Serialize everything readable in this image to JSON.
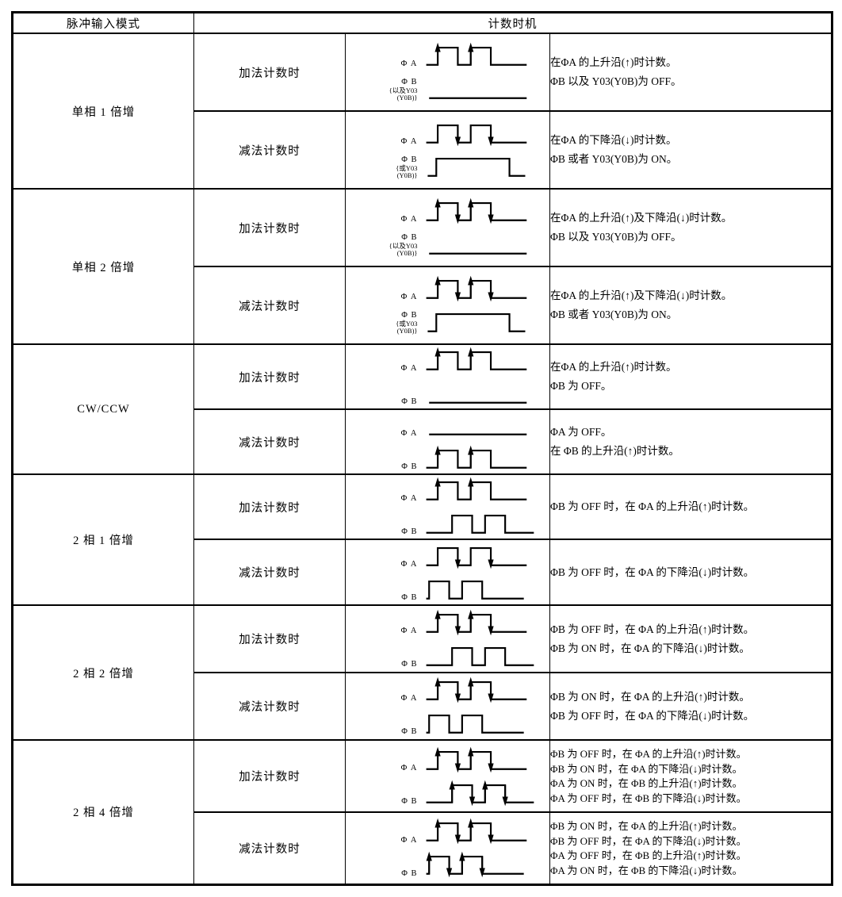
{
  "header": {
    "col_mode": "脉冲输入模式",
    "col_timing": "计数时机"
  },
  "modes": [
    {
      "mode": "单相 1 倍增",
      "subs": [
        {
          "label": "加法计数时",
          "waves": [
            {
              "label": [
                "Φ A"
              ],
              "type": "pulses",
              "arrows": "up",
              "shift": "none"
            },
            {
              "label": [
                "Φ B",
                "{以及Y03",
                "(Y0B)}"
              ],
              "type": "flat",
              "arrows": "none",
              "shift": "none"
            }
          ],
          "desc": [
            "在ΦA 的上升沿(↑)时计数。",
            "ΦB 以及 Y03(Y0B)为 OFF。"
          ]
        },
        {
          "label": "减法计数时",
          "waves": [
            {
              "label": [
                "Φ A"
              ],
              "type": "pulses",
              "arrows": "down",
              "shift": "none"
            },
            {
              "label": [
                "Φ B",
                "{或Y03",
                "(Y0B)}"
              ],
              "type": "highpulse",
              "arrows": "none",
              "shift": "none"
            }
          ],
          "desc": [
            "在ΦA 的下降沿(↓)时计数。",
            "ΦB 或者 Y03(Y0B)为 ON。"
          ]
        }
      ]
    },
    {
      "mode": "单相 2 倍增",
      "subs": [
        {
          "label": "加法计数时",
          "waves": [
            {
              "label": [
                "Φ A"
              ],
              "type": "pulses",
              "arrows": "both",
              "shift": "none"
            },
            {
              "label": [
                "Φ B",
                "{以及Y03",
                "(Y0B)}"
              ],
              "type": "flat",
              "arrows": "none",
              "shift": "none"
            }
          ],
          "desc": [
            "在ΦA 的上升沿(↑)及下降沿(↓)时计数。",
            "ΦB 以及 Y03(Y0B)为 OFF。"
          ]
        },
        {
          "label": "减法计数时",
          "waves": [
            {
              "label": [
                "Φ A"
              ],
              "type": "pulses",
              "arrows": "both",
              "shift": "none"
            },
            {
              "label": [
                "Φ B",
                "{或Y03",
                "(Y0B)}"
              ],
              "type": "highpulse",
              "arrows": "none",
              "shift": "none"
            }
          ],
          "desc": [
            "在ΦA 的上升沿(↑)及下降沿(↓)时计数。",
            "ΦB 或者 Y03(Y0B)为 ON。"
          ]
        }
      ]
    },
    {
      "mode": "CW/CCW",
      "subs": [
        {
          "label": "加法计数时",
          "waves": [
            {
              "label": [
                "Φ A"
              ],
              "type": "pulses",
              "arrows": "up",
              "shift": "none"
            },
            {
              "label": [
                "Φ B"
              ],
              "type": "flat",
              "arrows": "none",
              "shift": "none"
            }
          ],
          "desc": [
            "在ΦA 的上升沿(↑)时计数。",
            "ΦB 为 OFF。"
          ]
        },
        {
          "label": "减法计数时",
          "waves": [
            {
              "label": [
                "Φ A"
              ],
              "type": "flat",
              "arrows": "none",
              "shift": "none"
            },
            {
              "label": [
                "Φ B"
              ],
              "type": "pulses",
              "arrows": "up",
              "shift": "none"
            }
          ],
          "desc": [
            "ΦA 为 OFF。",
            "在 ΦB 的上升沿(↑)时计数。"
          ]
        }
      ]
    },
    {
      "mode": "2 相 1 倍增",
      "subs": [
        {
          "label": "加法计数时",
          "waves": [
            {
              "label": [
                "Φ A"
              ],
              "type": "pulses",
              "arrows": "up",
              "shift": "none"
            },
            {
              "label": [
                "Φ B"
              ],
              "type": "pulses",
              "arrows": "none",
              "shift": "lag"
            }
          ],
          "desc": [
            "ΦB 为 OFF 时，在 ΦA 的上升沿(↑)时计数。"
          ]
        },
        {
          "label": "减法计数时",
          "waves": [
            {
              "label": [
                "Φ A"
              ],
              "type": "pulses",
              "arrows": "down",
              "shift": "none"
            },
            {
              "label": [
                "Φ B"
              ],
              "type": "pulses",
              "arrows": "none",
              "shift": "lead"
            }
          ],
          "desc": [
            "ΦB 为 OFF 时，在 ΦA 的下降沿(↓)时计数。"
          ]
        }
      ]
    },
    {
      "mode": "2 相 2 倍增",
      "subs": [
        {
          "label": "加法计数时",
          "waves": [
            {
              "label": [
                "Φ A"
              ],
              "type": "pulses",
              "arrows": "both",
              "shift": "none"
            },
            {
              "label": [
                "Φ B"
              ],
              "type": "pulses",
              "arrows": "none",
              "shift": "lag"
            }
          ],
          "desc": [
            "ΦB 为 OFF 时，在 ΦA 的上升沿(↑)时计数。",
            "ΦB 为 ON 时，在 ΦA 的下降沿(↓)时计数。"
          ]
        },
        {
          "label": "减法计数时",
          "waves": [
            {
              "label": [
                "Φ A"
              ],
              "type": "pulses",
              "arrows": "both",
              "shift": "none"
            },
            {
              "label": [
                "Φ B"
              ],
              "type": "pulses",
              "arrows": "none",
              "shift": "lead"
            }
          ],
          "desc": [
            "ΦB 为 ON 时，在 ΦA 的上升沿(↑)时计数。",
            "ΦB 为 OFF 时，在 ΦA 的下降沿(↓)时计数。"
          ]
        }
      ]
    },
    {
      "mode": "2 相 4 倍增",
      "subs": [
        {
          "label": "加法计数时",
          "waves": [
            {
              "label": [
                "Φ A"
              ],
              "type": "pulses",
              "arrows": "both",
              "shift": "none"
            },
            {
              "label": [
                "Φ B"
              ],
              "type": "pulses",
              "arrows": "both",
              "shift": "lag"
            }
          ],
          "desc": [
            "ΦB 为 OFF 时，在 ΦA 的上升沿(↑)时计数。",
            "ΦB 为 ON 时，在 ΦA 的下降沿(↓)时计数。",
            "ΦA 为 ON 时，在 ΦB 的上升沿(↑)时计数。",
            "ΦA 为 OFF 时，在 ΦB 的下降沿(↓)时计数。"
          ]
        },
        {
          "label": "减法计数时",
          "waves": [
            {
              "label": [
                "Φ A"
              ],
              "type": "pulses",
              "arrows": "both",
              "shift": "none"
            },
            {
              "label": [
                "Φ B"
              ],
              "type": "pulses",
              "arrows": "both",
              "shift": "lead"
            }
          ],
          "desc": [
            "ΦB 为 ON 时，在 ΦA 的上升沿(↑)时计数。",
            "ΦB 为 OFF 时，在 ΦA 的下降沿(↓)时计数。",
            "ΦA 为 OFF 时，在 ΦB 的上升沿(↑)时计数。",
            "ΦA 为 ON 时，在 ΦB 的下降沿(↓)时计数。"
          ]
        }
      ]
    }
  ]
}
